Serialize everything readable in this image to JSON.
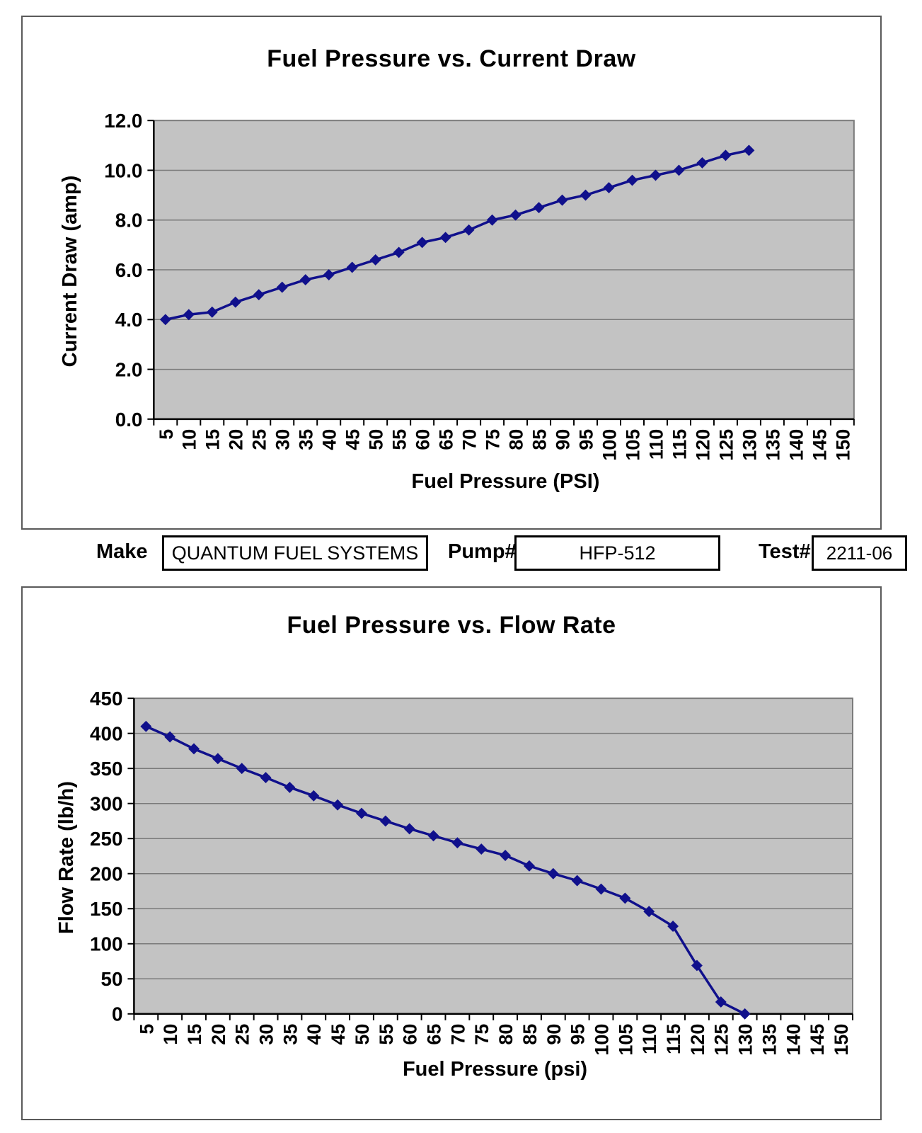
{
  "fields": {
    "make_label": "Make",
    "make_value": "QUANTUM FUEL SYSTEMS",
    "pump_label": "Pump#",
    "pump_value": "HFP-512",
    "test_label": "Test#",
    "test_value": "2211-06"
  },
  "chart_data": [
    {
      "type": "line",
      "title": "Fuel Pressure vs. Current Draw",
      "xlabel": "Fuel Pressure (PSI)",
      "ylabel": "Current Draw (amp)",
      "categories": [
        5,
        10,
        15,
        20,
        25,
        30,
        35,
        40,
        45,
        50,
        55,
        60,
        65,
        70,
        75,
        80,
        85,
        90,
        95,
        100,
        105,
        110,
        115,
        120,
        125,
        130,
        135,
        140,
        145,
        150
      ],
      "values": [
        4.0,
        4.2,
        4.3,
        4.7,
        5.0,
        5.3,
        5.6,
        5.8,
        6.1,
        6.4,
        6.7,
        7.1,
        7.3,
        7.6,
        8.0,
        8.2,
        8.5,
        8.8,
        9.0,
        9.3,
        9.6,
        9.8,
        10.0,
        10.3,
        10.6,
        10.8
      ],
      "ylim": [
        0,
        12
      ],
      "ytick_step": 2,
      "ytick_labels": [
        "0.0",
        "2.0",
        "4.0",
        "6.0",
        "8.0",
        "10.0",
        "12.0"
      ],
      "grid": true,
      "legend": "none",
      "line_color": "#10108c",
      "marker": "diamond",
      "plot_bg": "#c3c3c3",
      "gridline_color": "#7a7a7a"
    },
    {
      "type": "line",
      "title": "Fuel Pressure vs. Flow Rate",
      "xlabel": "Fuel Pressure (psi)",
      "ylabel": "Flow Rate (lb/h)",
      "categories": [
        5,
        10,
        15,
        20,
        25,
        30,
        35,
        40,
        45,
        50,
        55,
        60,
        65,
        70,
        75,
        80,
        85,
        90,
        95,
        100,
        105,
        110,
        115,
        120,
        125,
        130,
        135,
        140,
        145,
        150
      ],
      "values": [
        410,
        395,
        378,
        364,
        350,
        337,
        323,
        311,
        298,
        286,
        275,
        264,
        254,
        244,
        235,
        226,
        211,
        200,
        190,
        178,
        165,
        146,
        125,
        69,
        17,
        0
      ],
      "ylim": [
        0,
        450
      ],
      "ytick_step": 50,
      "ytick_labels": [
        "0",
        "50",
        "100",
        "150",
        "200",
        "250",
        "300",
        "350",
        "400",
        "450"
      ],
      "grid": true,
      "legend": "none",
      "line_color": "#10108c",
      "marker": "diamond",
      "plot_bg": "#c3c3c3",
      "gridline_color": "#7a7a7a"
    }
  ]
}
